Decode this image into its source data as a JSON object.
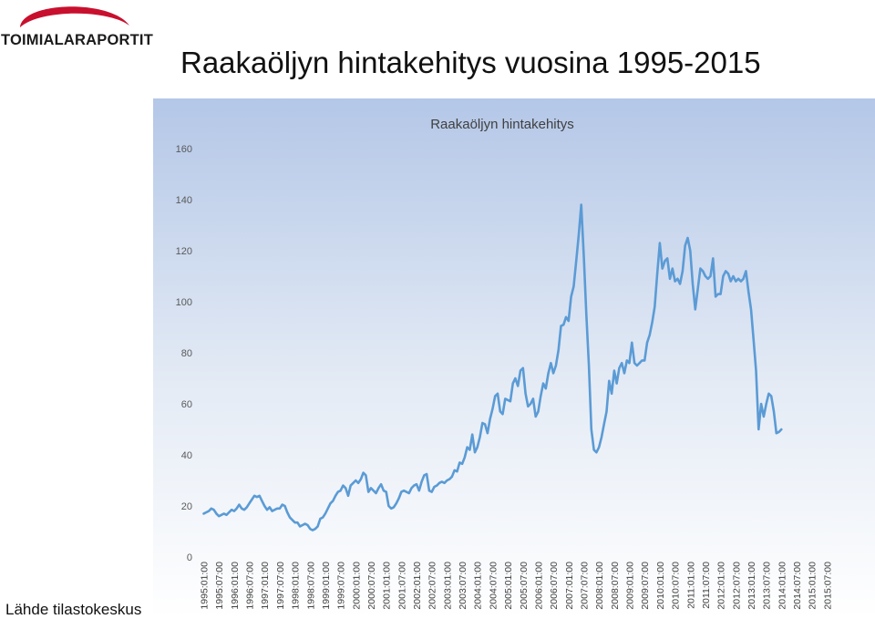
{
  "logo": {
    "text": "TOIMIALARAPORTIT",
    "brand_color": "#c8102e"
  },
  "page": {
    "title": "Raakaöljyn hintakehitys vuosina 1995-2015",
    "source": "Lähde tilastokeskus"
  },
  "chart_data": {
    "type": "line",
    "title": "Raakaöljyn hintakehitys",
    "xlabel": "",
    "ylabel": "",
    "ylim": [
      0,
      160
    ],
    "yticks": [
      0,
      20,
      40,
      60,
      80,
      100,
      120,
      140,
      160
    ],
    "grid": false,
    "legend": "none",
    "line_color": "#5b9bd5",
    "background": "gradient #b4c7e7 to #ffffff",
    "x_tick_labels": [
      "1995:01:00",
      "1995:07:00",
      "1996:01:00",
      "1996:07:00",
      "1997:01:00",
      "1997:07:00",
      "1998:01:00",
      "1998:07:00",
      "1999:01:00",
      "1999:07:00",
      "2000:01:00",
      "2000:07:00",
      "2001:01:00",
      "2001:07:00",
      "2002:01:00",
      "2002:07:00",
      "2003:01:00",
      "2003:07:00",
      "2004:01:00",
      "2004:07:00",
      "2005:01:00",
      "2005:07:00",
      "2006:01:00",
      "2006:07:00",
      "2007:01:00",
      "2007:07:00",
      "2008:01:00",
      "2008:07:00",
      "2009:01:00",
      "2009:07:00",
      "2010:01:00",
      "2010:07:00",
      "2011:01:00",
      "2011:07:00",
      "2012:01:00",
      "2012:07:00",
      "2013:01:00",
      "2013:07:00",
      "2014:01:00",
      "2014:07:00",
      "2015:01:00",
      "2015:07:00"
    ],
    "x_start": "1995-01",
    "values": [
      17,
      17.5,
      18,
      19,
      18.5,
      17,
      16,
      16.5,
      17,
      16.5,
      17.5,
      18.5,
      18,
      19,
      20.5,
      19,
      18.5,
      19.5,
      21,
      22.5,
      24,
      23.5,
      24,
      22,
      20,
      18.5,
      19.5,
      18,
      18.5,
      19,
      19,
      20.5,
      20,
      17.5,
      15.5,
      14.5,
      13.5,
      13.5,
      12,
      12.5,
      13,
      12.5,
      11,
      10.5,
      11,
      12,
      15,
      15.5,
      17,
      19,
      21,
      22,
      24,
      25.5,
      26,
      28,
      27,
      24,
      28,
      29,
      30,
      29,
      30.5,
      33,
      32,
      25.5,
      27,
      26,
      25,
      27,
      28.5,
      26,
      25.5,
      20,
      19,
      19.5,
      21,
      23,
      25.5,
      26,
      25.5,
      25,
      27,
      28,
      28.5,
      26,
      29.5,
      32,
      32.5,
      26,
      25.5,
      27.5,
      28,
      29,
      29.5,
      29,
      30,
      30.5,
      31.5,
      34,
      33.5,
      37,
      36.5,
      39,
      43,
      42,
      48,
      41,
      43,
      47,
      52.5,
      52,
      48.5,
      54,
      58,
      63,
      64,
      57,
      56,
      62,
      61.5,
      61,
      68,
      70,
      67,
      73,
      74,
      64,
      59,
      60,
      62,
      55,
      57,
      63,
      68,
      66,
      72,
      76,
      72,
      75,
      81,
      90.5,
      91,
      94,
      92.5,
      102,
      106,
      116,
      126,
      138,
      118,
      95,
      75,
      50,
      42,
      41,
      43,
      47,
      52,
      57,
      69,
      64,
      73,
      68,
      74,
      76,
      72,
      77,
      76,
      84,
      76,
      75,
      76,
      77,
      77,
      84,
      87,
      92,
      98,
      111,
      123,
      113,
      116,
      117,
      109,
      113,
      108,
      109,
      107,
      112,
      122,
      125,
      120,
      107,
      97,
      105,
      113,
      112,
      110,
      109,
      110,
      117,
      102,
      103,
      103,
      110,
      112,
      111,
      108,
      110,
      108,
      109,
      108,
      109,
      112,
      104,
      97,
      85,
      73,
      50,
      60,
      55,
      60,
      64,
      63,
      57,
      48.5,
      49,
      50
    ]
  }
}
